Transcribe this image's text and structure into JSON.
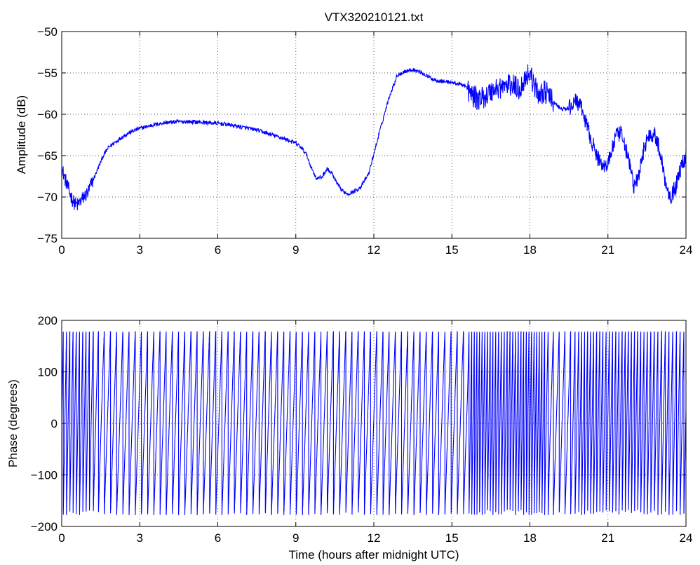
{
  "chart_data": [
    {
      "type": "line",
      "title": "VTX320210121.txt",
      "xlabel": "",
      "ylabel": "Amplitude (dB)",
      "xlim": [
        0,
        24
      ],
      "ylim": [
        -75,
        -50
      ],
      "xticks": [
        0,
        3,
        6,
        9,
        12,
        15,
        18,
        21,
        24
      ],
      "yticks": [
        -75,
        -70,
        -65,
        -60,
        -55,
        -50
      ],
      "xtick_labels": [
        "0",
        "3",
        "6",
        "9",
        "12",
        "15",
        "18",
        "21",
        "24"
      ],
      "ytick_labels": [
        "−75",
        "−70",
        "−65",
        "−60",
        "−55",
        "−50"
      ],
      "grid": true,
      "color": "#0000ff",
      "series": [
        {
          "x": [
            0,
            0.1,
            0.2,
            0.3,
            0.4,
            0.5,
            0.6,
            0.8,
            1.0,
            1.2,
            1.4,
            1.6,
            1.8,
            2.0,
            2.3,
            2.6,
            3.0,
            3.5,
            4.0,
            4.5,
            5.0,
            5.5,
            6.0,
            6.5,
            7.0,
            7.5,
            8.0,
            8.5,
            9.0,
            9.2,
            9.4,
            9.6,
            9.8,
            10.0,
            10.2,
            10.4,
            10.6,
            10.8,
            11.0,
            11.2,
            11.5,
            11.8,
            12.0,
            12.3,
            12.6,
            12.9,
            13.2,
            13.5,
            13.8,
            14.0,
            14.3,
            14.6,
            14.9,
            15.2,
            15.5,
            15.7,
            16.0,
            16.3,
            16.6,
            17.0,
            17.3,
            17.6,
            17.9,
            18.0,
            18.1,
            18.3,
            18.6,
            18.9,
            19.2,
            19.5,
            19.8,
            20.0,
            20.2,
            20.4,
            20.6,
            20.9,
            21.1,
            21.3,
            21.5,
            21.7,
            21.9,
            22.0,
            22.2,
            22.4,
            22.6,
            22.8,
            23.0,
            23.2,
            23.4,
            23.6,
            23.8,
            24.0
          ],
          "y": [
            -66.5,
            -67.5,
            -68.5,
            -69.5,
            -70.2,
            -70.8,
            -71.0,
            -70.2,
            -69.5,
            -68.0,
            -66.5,
            -65.0,
            -64.0,
            -63.5,
            -62.8,
            -62.2,
            -61.7,
            -61.3,
            -61.0,
            -60.9,
            -60.9,
            -61.0,
            -61.1,
            -61.3,
            -61.6,
            -61.9,
            -62.4,
            -62.9,
            -63.5,
            -64.0,
            -64.8,
            -66.5,
            -67.8,
            -67.6,
            -66.6,
            -67.2,
            -68.5,
            -69.3,
            -69.6,
            -69.4,
            -68.8,
            -67.2,
            -64.8,
            -61.2,
            -57.8,
            -55.3,
            -54.8,
            -54.6,
            -54.9,
            -55.3,
            -55.8,
            -56.0,
            -56.1,
            -56.3,
            -56.5,
            -57.5,
            -58.2,
            -57.8,
            -57.0,
            -56.6,
            -56.4,
            -57.0,
            -55.2,
            -54.8,
            -56.0,
            -57.5,
            -57.3,
            -58.5,
            -59.4,
            -59.3,
            -58.3,
            -59.5,
            -61.5,
            -63.5,
            -65.3,
            -66.4,
            -65.0,
            -62.6,
            -62.4,
            -64.3,
            -67.0,
            -68.8,
            -67.4,
            -63.8,
            -62.5,
            -62.4,
            -64.5,
            -68.0,
            -70.0,
            -68.8,
            -66.5,
            -65.0
          ]
        }
      ]
    },
    {
      "type": "line",
      "title": "",
      "xlabel": "Time (hours after midnight UTC)",
      "ylabel": "Phase (degrees)",
      "xlim": [
        0,
        24
      ],
      "ylim": [
        -200,
        200
      ],
      "xticks": [
        0,
        3,
        6,
        9,
        12,
        15,
        18,
        21,
        24
      ],
      "yticks": [
        -200,
        -100,
        0,
        100,
        200
      ],
      "xtick_labels": [
        "0",
        "3",
        "6",
        "9",
        "12",
        "15",
        "18",
        "21",
        "24"
      ],
      "ytick_labels": [
        "−200",
        "−100",
        "0",
        "100",
        "200"
      ],
      "grid": true,
      "color": "#0000ff",
      "series": [
        {
          "x": [
            0,
            0.5,
            1.0,
            1.3,
            1.6,
            3.0,
            6.0,
            9.0,
            12.0,
            15.0,
            15.6,
            15.7,
            16.0,
            17.0,
            18.0,
            18.5,
            18.8,
            19.5,
            20.0,
            21.0,
            22.0,
            23.0,
            24.0
          ],
          "y": [
            180,
            180,
            180,
            180,
            180,
            180,
            180,
            180,
            180,
            180,
            180,
            180,
            180,
            180,
            180,
            180,
            180,
            180,
            180,
            180,
            180,
            180,
            180
          ],
          "y_min": [
            -180,
            -180,
            -180,
            -180,
            -180,
            -180,
            -180,
            -180,
            -180,
            -180,
            -180,
            -180,
            -180,
            -180,
            -180,
            -180,
            -180,
            -180,
            -180,
            -180,
            -180,
            -180,
            -180
          ],
          "cycles_per_hour": [
            8.0,
            8.0,
            8.0,
            5.0,
            4.2,
            4.2,
            4.2,
            4.2,
            4.2,
            4.2,
            4.2,
            10.0,
            10.0,
            9.0,
            10.0,
            10.0,
            4.5,
            4.5,
            9.0,
            8.0,
            8.5,
            7.0,
            7.0
          ]
        }
      ]
    }
  ]
}
